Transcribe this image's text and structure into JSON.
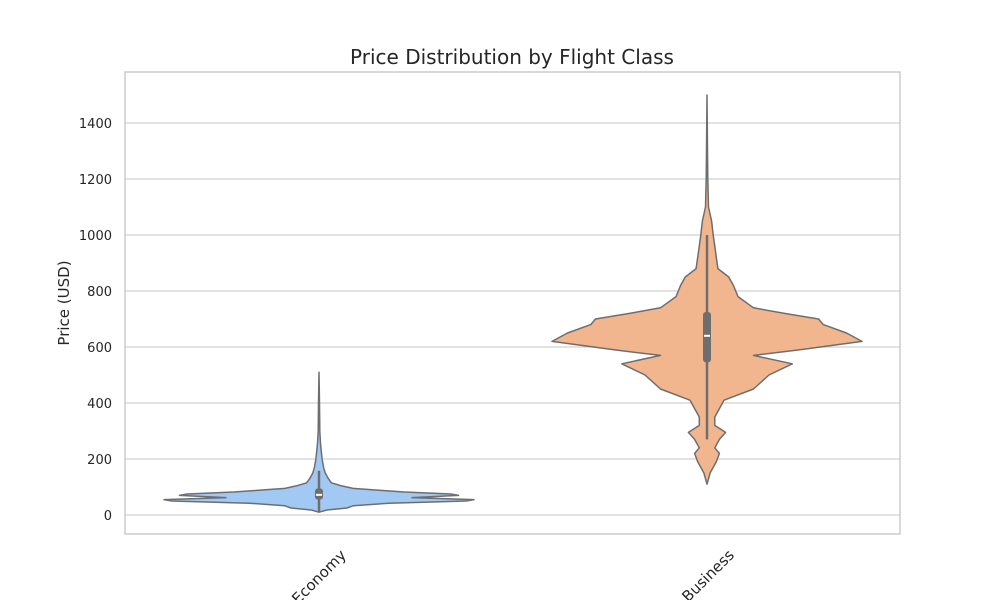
{
  "chart_data": {
    "type": "violin",
    "title": "Price Distribution by Flight Class",
    "xlabel": "",
    "ylabel": "Price (USD)",
    "categories": [
      "Economy",
      "Business"
    ],
    "ylim": [
      -70,
      1580
    ],
    "yticks": [
      0,
      200,
      400,
      600,
      800,
      1000,
      1200,
      1400
    ],
    "grid": true,
    "colors": {
      "Economy": "#a1c9f4",
      "Business": "#f1b68d",
      "outline": "#6e6e6e",
      "grid": "#d0d0d0",
      "frame": "#cccccc"
    },
    "series": [
      {
        "name": "Economy",
        "min": 10,
        "max": 510,
        "q1": 55,
        "median": 72,
        "q3": 95,
        "whisker_low": 10,
        "whisker_high": 158,
        "density": [
          [
            10,
            0.0
          ],
          [
            18,
            0.05
          ],
          [
            25,
            0.18
          ],
          [
            33,
            0.22
          ],
          [
            42,
            0.45
          ],
          [
            50,
            0.95
          ],
          [
            55,
            1.0
          ],
          [
            62,
            0.6
          ],
          [
            70,
            0.9
          ],
          [
            75,
            0.85
          ],
          [
            82,
            0.55
          ],
          [
            88,
            0.4
          ],
          [
            95,
            0.22
          ],
          [
            105,
            0.14
          ],
          [
            115,
            0.08
          ],
          [
            130,
            0.06
          ],
          [
            140,
            0.05
          ],
          [
            150,
            0.04
          ],
          [
            170,
            0.03
          ],
          [
            200,
            0.02
          ],
          [
            250,
            0.01
          ],
          [
            300,
            0.005
          ],
          [
            400,
            0.003
          ],
          [
            510,
            0.0
          ]
        ]
      },
      {
        "name": "Business",
        "min": 110,
        "max": 1500,
        "q1": 545,
        "median": 640,
        "q3": 725,
        "whisker_low": 270,
        "whisker_high": 1000,
        "density": [
          [
            110,
            0.0
          ],
          [
            150,
            0.02
          ],
          [
            190,
            0.06
          ],
          [
            220,
            0.08
          ],
          [
            240,
            0.05
          ],
          [
            270,
            0.08
          ],
          [
            295,
            0.12
          ],
          [
            320,
            0.05
          ],
          [
            350,
            0.05
          ],
          [
            380,
            0.08
          ],
          [
            410,
            0.11
          ],
          [
            450,
            0.3
          ],
          [
            500,
            0.4
          ],
          [
            540,
            0.55
          ],
          [
            570,
            0.3
          ],
          [
            590,
            0.6
          ],
          [
            620,
            1.0
          ],
          [
            650,
            0.9
          ],
          [
            680,
            0.75
          ],
          [
            700,
            0.72
          ],
          [
            720,
            0.5
          ],
          [
            740,
            0.3
          ],
          [
            780,
            0.2
          ],
          [
            820,
            0.17
          ],
          [
            850,
            0.14
          ],
          [
            880,
            0.07
          ],
          [
            920,
            0.06
          ],
          [
            960,
            0.05
          ],
          [
            1000,
            0.04
          ],
          [
            1050,
            0.03
          ],
          [
            1100,
            0.01
          ],
          [
            1200,
            0.005
          ],
          [
            1300,
            0.003
          ],
          [
            1500,
            0.0
          ]
        ]
      }
    ]
  }
}
